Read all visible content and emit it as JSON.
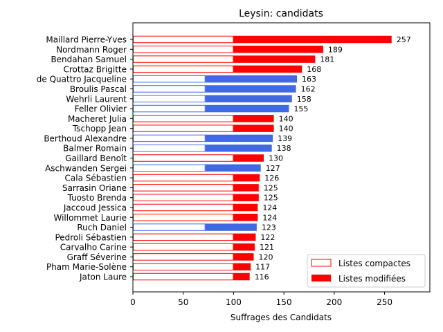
{
  "chart_data": {
    "type": "bar",
    "orientation": "horizontal",
    "title": "Leysin: candidats",
    "xlabel": "Suffrages des Candidats",
    "ylabel": "",
    "xlim": [
      0,
      295
    ],
    "xticks": [
      0,
      50,
      100,
      150,
      200,
      250
    ],
    "grid": false,
    "legend_position": "lower-right",
    "colors": {
      "red": "#ff0000",
      "blue": "#4169e1",
      "white": "#ffffff"
    },
    "legend": [
      {
        "label": "Listes compactes",
        "style": "outline"
      },
      {
        "label": "Listes modifiées",
        "style": "filled"
      }
    ],
    "candidates": [
      {
        "name": "Maillard Pierre-Yves",
        "total": 257,
        "compact": 100,
        "color": "red"
      },
      {
        "name": "Nordmann Roger",
        "total": 189,
        "compact": 100,
        "color": "red"
      },
      {
        "name": "Bendahan Samuel",
        "total": 181,
        "compact": 100,
        "color": "red"
      },
      {
        "name": "Crottaz Brigitte",
        "total": 168,
        "compact": 100,
        "color": "red"
      },
      {
        "name": "de Quattro Jacqueline",
        "total": 163,
        "compact": 72,
        "color": "blue"
      },
      {
        "name": "Broulis Pascal",
        "total": 162,
        "compact": 72,
        "color": "blue"
      },
      {
        "name": "Wehrli Laurent",
        "total": 158,
        "compact": 72,
        "color": "blue"
      },
      {
        "name": "Feller Olivier",
        "total": 155,
        "compact": 72,
        "color": "blue"
      },
      {
        "name": "Macheret Julia",
        "total": 140,
        "compact": 100,
        "color": "red"
      },
      {
        "name": "Tschopp Jean",
        "total": 140,
        "compact": 100,
        "color": "red"
      },
      {
        "name": "Berthoud Alexandre",
        "total": 139,
        "compact": 72,
        "color": "blue"
      },
      {
        "name": "Balmer Romain",
        "total": 138,
        "compact": 72,
        "color": "blue"
      },
      {
        "name": "Gaillard Benoît",
        "total": 130,
        "compact": 100,
        "color": "red"
      },
      {
        "name": "Aschwanden Sergei",
        "total": 127,
        "compact": 72,
        "color": "blue"
      },
      {
        "name": "Cala Sébastien",
        "total": 126,
        "compact": 100,
        "color": "red"
      },
      {
        "name": "Sarrasin Oriane",
        "total": 125,
        "compact": 100,
        "color": "red"
      },
      {
        "name": "Tuosto Brenda",
        "total": 125,
        "compact": 100,
        "color": "red"
      },
      {
        "name": "Jaccoud Jessica",
        "total": 124,
        "compact": 100,
        "color": "red"
      },
      {
        "name": "Willommet Laurie",
        "total": 124,
        "compact": 100,
        "color": "red"
      },
      {
        "name": "Ruch Daniel",
        "total": 123,
        "compact": 72,
        "color": "blue"
      },
      {
        "name": "Pedroli Sébastien",
        "total": 122,
        "compact": 100,
        "color": "red"
      },
      {
        "name": "Carvalho Carine",
        "total": 121,
        "compact": 100,
        "color": "red"
      },
      {
        "name": "Graff Séverine",
        "total": 120,
        "compact": 100,
        "color": "red"
      },
      {
        "name": "Pham Marie-Solène",
        "total": 117,
        "compact": 100,
        "color": "red"
      },
      {
        "name": "Jaton Laure",
        "total": 116,
        "compact": 100,
        "color": "red"
      }
    ]
  }
}
